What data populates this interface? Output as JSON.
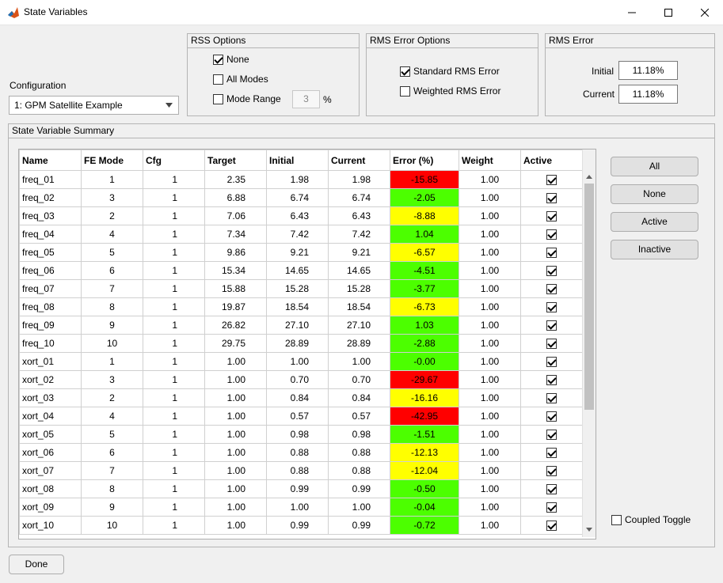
{
  "window": {
    "title": "State Variables",
    "minimize": "—",
    "maximize": "☐",
    "close": "✕"
  },
  "configuration": {
    "label": "Configuration",
    "selected": "1: GPM Satellite Example"
  },
  "rss_options": {
    "title": "RSS Options",
    "none_label": "None",
    "none_checked": true,
    "all_modes_label": "All Modes",
    "all_modes_checked": false,
    "mode_range_label": "Mode Range",
    "mode_range_checked": false,
    "mode_range_value": "3",
    "mode_range_unit": "%"
  },
  "rms_error_options": {
    "title": "RMS Error Options",
    "standard_label": "Standard RMS Error",
    "standard_checked": true,
    "weighted_label": "Weighted RMS Error",
    "weighted_checked": false
  },
  "rms_error": {
    "title": "RMS Error",
    "initial_label": "Initial",
    "initial_value": "11.18%",
    "current_label": "Current",
    "current_value": "11.18%"
  },
  "summary": {
    "title": "State Variable Summary",
    "columns": [
      "Name",
      "FE Mode",
      "Cfg",
      "Target",
      "Initial",
      "Current",
      "Error (%)",
      "Weight",
      "Active"
    ],
    "rows": [
      {
        "name": "freq_01",
        "mode": "1",
        "cfg": "1",
        "target": "2.35",
        "initial": "1.98",
        "current": "1.98",
        "error": "-15.85",
        "weight": "1.00",
        "active": true,
        "color": "#ff0000"
      },
      {
        "name": "freq_02",
        "mode": "3",
        "cfg": "1",
        "target": "6.88",
        "initial": "6.74",
        "current": "6.74",
        "error": "-2.05",
        "weight": "1.00",
        "active": true,
        "color": "#4cff00"
      },
      {
        "name": "freq_03",
        "mode": "2",
        "cfg": "1",
        "target": "7.06",
        "initial": "6.43",
        "current": "6.43",
        "error": "-8.88",
        "weight": "1.00",
        "active": true,
        "color": "#ffff00"
      },
      {
        "name": "freq_04",
        "mode": "4",
        "cfg": "1",
        "target": "7.34",
        "initial": "7.42",
        "current": "7.42",
        "error": "1.04",
        "weight": "1.00",
        "active": true,
        "color": "#4cff00"
      },
      {
        "name": "freq_05",
        "mode": "5",
        "cfg": "1",
        "target": "9.86",
        "initial": "9.21",
        "current": "9.21",
        "error": "-6.57",
        "weight": "1.00",
        "active": true,
        "color": "#ffff00"
      },
      {
        "name": "freq_06",
        "mode": "6",
        "cfg": "1",
        "target": "15.34",
        "initial": "14.65",
        "current": "14.65",
        "error": "-4.51",
        "weight": "1.00",
        "active": true,
        "color": "#4cff00"
      },
      {
        "name": "freq_07",
        "mode": "7",
        "cfg": "1",
        "target": "15.88",
        "initial": "15.28",
        "current": "15.28",
        "error": "-3.77",
        "weight": "1.00",
        "active": true,
        "color": "#4cff00"
      },
      {
        "name": "freq_08",
        "mode": "8",
        "cfg": "1",
        "target": "19.87",
        "initial": "18.54",
        "current": "18.54",
        "error": "-6.73",
        "weight": "1.00",
        "active": true,
        "color": "#ffff00"
      },
      {
        "name": "freq_09",
        "mode": "9",
        "cfg": "1",
        "target": "26.82",
        "initial": "27.10",
        "current": "27.10",
        "error": "1.03",
        "weight": "1.00",
        "active": true,
        "color": "#4cff00"
      },
      {
        "name": "freq_10",
        "mode": "10",
        "cfg": "1",
        "target": "29.75",
        "initial": "28.89",
        "current": "28.89",
        "error": "-2.88",
        "weight": "1.00",
        "active": true,
        "color": "#4cff00"
      },
      {
        "name": "xort_01",
        "mode": "1",
        "cfg": "1",
        "target": "1.00",
        "initial": "1.00",
        "current": "1.00",
        "error": "-0.00",
        "weight": "1.00",
        "active": true,
        "color": "#4cff00"
      },
      {
        "name": "xort_02",
        "mode": "3",
        "cfg": "1",
        "target": "1.00",
        "initial": "0.70",
        "current": "0.70",
        "error": "-29.67",
        "weight": "1.00",
        "active": true,
        "color": "#ff0000"
      },
      {
        "name": "xort_03",
        "mode": "2",
        "cfg": "1",
        "target": "1.00",
        "initial": "0.84",
        "current": "0.84",
        "error": "-16.16",
        "weight": "1.00",
        "active": true,
        "color": "#ffff00"
      },
      {
        "name": "xort_04",
        "mode": "4",
        "cfg": "1",
        "target": "1.00",
        "initial": "0.57",
        "current": "0.57",
        "error": "-42.95",
        "weight": "1.00",
        "active": true,
        "color": "#ff0000"
      },
      {
        "name": "xort_05",
        "mode": "5",
        "cfg": "1",
        "target": "1.00",
        "initial": "0.98",
        "current": "0.98",
        "error": "-1.51",
        "weight": "1.00",
        "active": true,
        "color": "#4cff00"
      },
      {
        "name": "xort_06",
        "mode": "6",
        "cfg": "1",
        "target": "1.00",
        "initial": "0.88",
        "current": "0.88",
        "error": "-12.13",
        "weight": "1.00",
        "active": true,
        "color": "#ffff00"
      },
      {
        "name": "xort_07",
        "mode": "7",
        "cfg": "1",
        "target": "1.00",
        "initial": "0.88",
        "current": "0.88",
        "error": "-12.04",
        "weight": "1.00",
        "active": true,
        "color": "#ffff00"
      },
      {
        "name": "xort_08",
        "mode": "8",
        "cfg": "1",
        "target": "1.00",
        "initial": "0.99",
        "current": "0.99",
        "error": "-0.50",
        "weight": "1.00",
        "active": true,
        "color": "#4cff00"
      },
      {
        "name": "xort_09",
        "mode": "9",
        "cfg": "1",
        "target": "1.00",
        "initial": "1.00",
        "current": "1.00",
        "error": "-0.04",
        "weight": "1.00",
        "active": true,
        "color": "#4cff00"
      },
      {
        "name": "xort_10",
        "mode": "10",
        "cfg": "1",
        "target": "1.00",
        "initial": "0.99",
        "current": "0.99",
        "error": "-0.72",
        "weight": "1.00",
        "active": true,
        "color": "#4cff00"
      }
    ]
  },
  "side_buttons": {
    "all": "All",
    "none": "None",
    "active": "Active",
    "inactive": "Inactive"
  },
  "coupled_toggle": {
    "label": "Coupled Toggle",
    "checked": false
  },
  "done_label": "Done"
}
